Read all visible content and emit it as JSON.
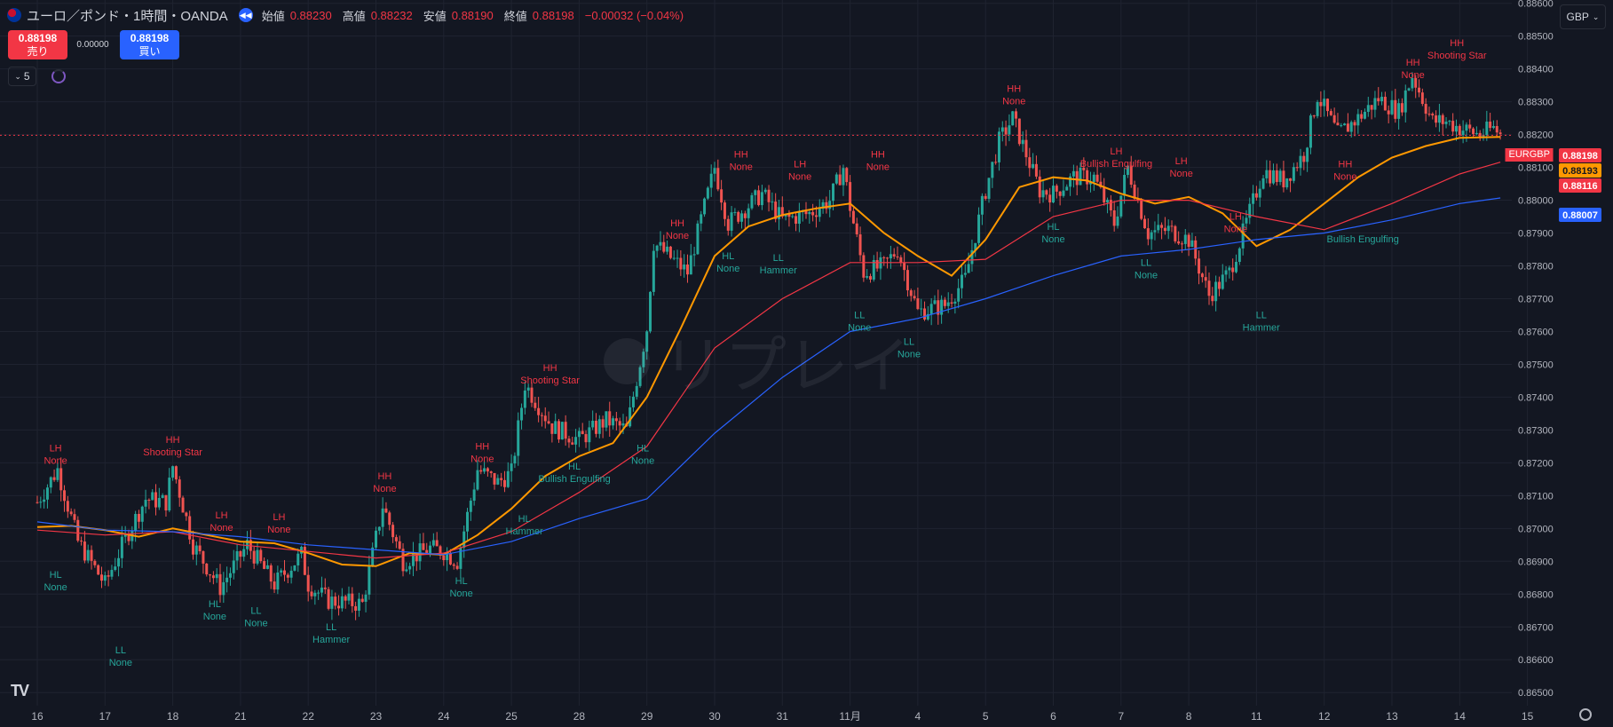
{
  "header": {
    "title": "ユーロ／ポンド・1時間・OANDA",
    "open_label": "始値",
    "open": "0.88230",
    "high_label": "高値",
    "high": "0.88232",
    "low_label": "安値",
    "low": "0.88190",
    "close_label": "終値",
    "close": "0.88198",
    "change": "−0.00032 (−0.04%)"
  },
  "trade": {
    "sell_price": "0.88198",
    "sell_label": "売り",
    "spread": "0.00000",
    "buy_price": "0.88198",
    "buy_label": "買い"
  },
  "interval": "5",
  "currency": "GBP",
  "watermark": "リプレイ",
  "symbol": "EURGBP",
  "colors": {
    "background": "#131722",
    "grid": "#1f2330",
    "up": "#26a69a",
    "down": "#ef5350",
    "ema_fast": "#ff9800",
    "ema_mid": "#f23645",
    "ema_slow": "#2962ff",
    "swing_high_text": "#f23645",
    "swing_low_text": "#26a69a"
  },
  "chart_data": {
    "type": "line",
    "y_axis": {
      "ticks": [
        "0.86500",
        "0.86600",
        "0.86700",
        "0.86800",
        "0.86900",
        "0.87000",
        "0.87100",
        "0.87200",
        "0.87300",
        "0.87400",
        "0.87500",
        "0.87600",
        "0.87700",
        "0.87800",
        "0.87900",
        "0.88000",
        "0.88100",
        "0.88200",
        "0.88300",
        "0.88400",
        "0.88500",
        "0.88600"
      ],
      "range": [
        0.8646,
        0.8861
      ]
    },
    "x_axis": {
      "ticks": [
        "16",
        "17",
        "18",
        "21",
        "22",
        "23",
        "24",
        "25",
        "28",
        "29",
        "30",
        "31",
        "11月",
        "4",
        "5",
        "6",
        "7",
        "8",
        "11",
        "12",
        "13",
        "14",
        "15"
      ]
    },
    "price_series": [
      {
        "x": 0.0,
        "y": 0.8708
      },
      {
        "x": 0.3,
        "y": 0.8718
      },
      {
        "x": 0.6,
        "y": 0.8696
      },
      {
        "x": 1.0,
        "y": 0.8683
      },
      {
        "x": 1.3,
        "y": 0.8697
      },
      {
        "x": 1.6,
        "y": 0.8709
      },
      {
        "x": 1.9,
        "y": 0.8708
      },
      {
        "x": 2.0,
        "y": 0.8719
      },
      {
        "x": 2.3,
        "y": 0.8695
      },
      {
        "x": 2.7,
        "y": 0.8682
      },
      {
        "x": 3.1,
        "y": 0.8695
      },
      {
        "x": 3.5,
        "y": 0.8683
      },
      {
        "x": 3.9,
        "y": 0.8692
      },
      {
        "x": 4.0,
        "y": 0.8683
      },
      {
        "x": 4.3,
        "y": 0.8678
      },
      {
        "x": 4.8,
        "y": 0.8677
      },
      {
        "x": 5.1,
        "y": 0.8707
      },
      {
        "x": 5.4,
        "y": 0.869
      },
      {
        "x": 5.8,
        "y": 0.8694
      },
      {
        "x": 6.0,
        "y": 0.8693
      },
      {
        "x": 6.2,
        "y": 0.869
      },
      {
        "x": 6.5,
        "y": 0.8718
      },
      {
        "x": 6.8,
        "y": 0.8714
      },
      {
        "x": 7.0,
        "y": 0.8717
      },
      {
        "x": 7.2,
        "y": 0.8744
      },
      {
        "x": 7.6,
        "y": 0.8731
      },
      {
        "x": 8.0,
        "y": 0.8727
      },
      {
        "x": 8.4,
        "y": 0.8733
      },
      {
        "x": 8.7,
        "y": 0.873
      },
      {
        "x": 9.0,
        "y": 0.8761
      },
      {
        "x": 9.1,
        "y": 0.8787
      },
      {
        "x": 9.6,
        "y": 0.8778
      },
      {
        "x": 10.0,
        "y": 0.881
      },
      {
        "x": 10.2,
        "y": 0.8793
      },
      {
        "x": 10.7,
        "y": 0.8802
      },
      {
        "x": 11.0,
        "y": 0.8794
      },
      {
        "x": 11.4,
        "y": 0.8796
      },
      {
        "x": 11.7,
        "y": 0.88
      },
      {
        "x": 11.9,
        "y": 0.881
      },
      {
        "x": 12.0,
        "y": 0.8798
      },
      {
        "x": 12.2,
        "y": 0.8778
      },
      {
        "x": 12.5,
        "y": 0.878
      },
      {
        "x": 12.7,
        "y": 0.8785
      },
      {
        "x": 13.0,
        "y": 0.8766
      },
      {
        "x": 13.4,
        "y": 0.8768
      },
      {
        "x": 13.7,
        "y": 0.8776
      },
      {
        "x": 14.0,
        "y": 0.8803
      },
      {
        "x": 14.2,
        "y": 0.8818
      },
      {
        "x": 14.4,
        "y": 0.8825
      },
      {
        "x": 14.6,
        "y": 0.8814
      },
      {
        "x": 14.8,
        "y": 0.8803
      },
      {
        "x": 15.0,
        "y": 0.8802
      },
      {
        "x": 15.3,
        "y": 0.8807
      },
      {
        "x": 15.6,
        "y": 0.8807
      },
      {
        "x": 15.9,
        "y": 0.8793
      },
      {
        "x": 16.1,
        "y": 0.881
      },
      {
        "x": 16.4,
        "y": 0.879
      },
      {
        "x": 16.7,
        "y": 0.8791
      },
      {
        "x": 17.0,
        "y": 0.8788
      },
      {
        "x": 17.3,
        "y": 0.8771
      },
      {
        "x": 17.6,
        "y": 0.8778
      },
      {
        "x": 17.8,
        "y": 0.879
      },
      {
        "x": 18.1,
        "y": 0.8809
      },
      {
        "x": 18.4,
        "y": 0.8806
      },
      {
        "x": 18.7,
        "y": 0.8814
      },
      {
        "x": 18.9,
        "y": 0.8832
      },
      {
        "x": 19.2,
        "y": 0.882
      },
      {
        "x": 19.5,
        "y": 0.8825
      },
      {
        "x": 19.8,
        "y": 0.8831
      },
      {
        "x": 20.1,
        "y": 0.8827
      },
      {
        "x": 20.3,
        "y": 0.8838
      },
      {
        "x": 20.6,
        "y": 0.8824
      },
      {
        "x": 20.8,
        "y": 0.8824
      },
      {
        "x": 21.0,
        "y": 0.8822
      },
      {
        "x": 21.3,
        "y": 0.882
      },
      {
        "x": 21.5,
        "y": 0.8822
      },
      {
        "x": 21.6,
        "y": 0.882
      }
    ],
    "series": [
      {
        "name": "EMA fast",
        "color": "#ff9800",
        "points": [
          {
            "x": 0.0,
            "y": 0.87004
          },
          {
            "x": 0.5,
            "y": 0.87008
          },
          {
            "x": 1.0,
            "y": 0.86995
          },
          {
            "x": 1.5,
            "y": 0.86975
          },
          {
            "x": 2.0,
            "y": 0.87
          },
          {
            "x": 2.5,
            "y": 0.8698
          },
          {
            "x": 3.0,
            "y": 0.8696
          },
          {
            "x": 3.5,
            "y": 0.86955
          },
          {
            "x": 4.0,
            "y": 0.86925
          },
          {
            "x": 4.5,
            "y": 0.8689
          },
          {
            "x": 5.0,
            "y": 0.86885
          },
          {
            "x": 5.5,
            "y": 0.86925
          },
          {
            "x": 6.0,
            "y": 0.8692
          },
          {
            "x": 6.5,
            "y": 0.8698
          },
          {
            "x": 7.0,
            "y": 0.8706
          },
          {
            "x": 7.5,
            "y": 0.8716
          },
          {
            "x": 8.0,
            "y": 0.8722
          },
          {
            "x": 8.5,
            "y": 0.8726
          },
          {
            "x": 9.0,
            "y": 0.874
          },
          {
            "x": 9.5,
            "y": 0.8761
          },
          {
            "x": 10.0,
            "y": 0.8783
          },
          {
            "x": 10.5,
            "y": 0.8792
          },
          {
            "x": 11.0,
            "y": 0.87955
          },
          {
            "x": 11.5,
            "y": 0.87975
          },
          {
            "x": 12.0,
            "y": 0.8799
          },
          {
            "x": 12.5,
            "y": 0.879
          },
          {
            "x": 13.0,
            "y": 0.8783
          },
          {
            "x": 13.5,
            "y": 0.8777
          },
          {
            "x": 14.0,
            "y": 0.8788
          },
          {
            "x": 14.5,
            "y": 0.8804
          },
          {
            "x": 15.0,
            "y": 0.8807
          },
          {
            "x": 15.5,
            "y": 0.8806
          },
          {
            "x": 16.0,
            "y": 0.8802
          },
          {
            "x": 16.5,
            "y": 0.8799
          },
          {
            "x": 17.0,
            "y": 0.8801
          },
          {
            "x": 17.5,
            "y": 0.8796
          },
          {
            "x": 18.0,
            "y": 0.8786
          },
          {
            "x": 18.5,
            "y": 0.8791
          },
          {
            "x": 19.0,
            "y": 0.8799
          },
          {
            "x": 19.5,
            "y": 0.8807
          },
          {
            "x": 20.0,
            "y": 0.8813
          },
          {
            "x": 20.5,
            "y": 0.88165
          },
          {
            "x": 21.0,
            "y": 0.8819
          },
          {
            "x": 21.6,
            "y": 0.88193
          }
        ]
      },
      {
        "name": "EMA mid",
        "color": "#f23645",
        "points": [
          {
            "x": 0.0,
            "y": 0.86995
          },
          {
            "x": 1.0,
            "y": 0.8698
          },
          {
            "x": 2.0,
            "y": 0.8699
          },
          {
            "x": 3.0,
            "y": 0.8695
          },
          {
            "x": 4.0,
            "y": 0.8693
          },
          {
            "x": 5.0,
            "y": 0.8691
          },
          {
            "x": 6.0,
            "y": 0.86925
          },
          {
            "x": 7.0,
            "y": 0.8699
          },
          {
            "x": 8.0,
            "y": 0.8711
          },
          {
            "x": 9.0,
            "y": 0.8725
          },
          {
            "x": 10.0,
            "y": 0.8755
          },
          {
            "x": 11.0,
            "y": 0.877
          },
          {
            "x": 12.0,
            "y": 0.8781
          },
          {
            "x": 13.0,
            "y": 0.8781
          },
          {
            "x": 14.0,
            "y": 0.8782
          },
          {
            "x": 15.0,
            "y": 0.8795
          },
          {
            "x": 16.0,
            "y": 0.88
          },
          {
            "x": 17.0,
            "y": 0.88
          },
          {
            "x": 18.0,
            "y": 0.8795
          },
          {
            "x": 19.0,
            "y": 0.8791
          },
          {
            "x": 20.0,
            "y": 0.8799
          },
          {
            "x": 21.0,
            "y": 0.8808
          },
          {
            "x": 21.6,
            "y": 0.88116
          }
        ]
      },
      {
        "name": "EMA slow",
        "color": "#2962ff",
        "points": [
          {
            "x": 0.0,
            "y": 0.8702
          },
          {
            "x": 1.0,
            "y": 0.86995
          },
          {
            "x": 2.0,
            "y": 0.8699
          },
          {
            "x": 3.0,
            "y": 0.86975
          },
          {
            "x": 4.0,
            "y": 0.8695
          },
          {
            "x": 5.0,
            "y": 0.86935
          },
          {
            "x": 6.0,
            "y": 0.8692
          },
          {
            "x": 7.0,
            "y": 0.8696
          },
          {
            "x": 8.0,
            "y": 0.8703
          },
          {
            "x": 9.0,
            "y": 0.8709
          },
          {
            "x": 10.0,
            "y": 0.8729
          },
          {
            "x": 11.0,
            "y": 0.8746
          },
          {
            "x": 12.0,
            "y": 0.876
          },
          {
            "x": 13.0,
            "y": 0.8764
          },
          {
            "x": 14.0,
            "y": 0.877
          },
          {
            "x": 15.0,
            "y": 0.8777
          },
          {
            "x": 16.0,
            "y": 0.8783
          },
          {
            "x": 17.0,
            "y": 0.8785
          },
          {
            "x": 18.0,
            "y": 0.8788
          },
          {
            "x": 19.0,
            "y": 0.879
          },
          {
            "x": 20.0,
            "y": 0.8794
          },
          {
            "x": 21.0,
            "y": 0.8799
          },
          {
            "x": 21.6,
            "y": 0.88007
          }
        ]
      }
    ],
    "current_price": 0.88198,
    "price_labels": [
      {
        "value": 0.88198,
        "text": "0.88198",
        "color": "#f23645"
      },
      {
        "value": 0.88193,
        "text": "0.88193",
        "color": "#ff9800"
      },
      {
        "value": 0.88116,
        "text": "0.88116",
        "color": "#f23645"
      },
      {
        "value": 0.88007,
        "text": "0.88007",
        "color": "#2962ff"
      }
    ],
    "annotations": [
      {
        "kind": "high",
        "x": 0.27,
        "y": 0.87235,
        "line1": "LH",
        "line2": "None"
      },
      {
        "kind": "high",
        "x": 2.0,
        "y": 0.8726,
        "line1": "HH",
        "line2": "Shooting Star"
      },
      {
        "kind": "high",
        "x": 2.72,
        "y": 0.8703,
        "line1": "LH",
        "line2": "None"
      },
      {
        "kind": "high",
        "x": 3.57,
        "y": 0.87025,
        "line1": "LH",
        "line2": "None"
      },
      {
        "kind": "high",
        "x": 5.13,
        "y": 0.8715,
        "line1": "HH",
        "line2": "None"
      },
      {
        "kind": "high",
        "x": 6.57,
        "y": 0.8724,
        "line1": "HH",
        "line2": "None"
      },
      {
        "kind": "high",
        "x": 7.57,
        "y": 0.8748,
        "line1": "HH",
        "line2": "Shooting Star"
      },
      {
        "kind": "high",
        "x": 9.45,
        "y": 0.8792,
        "line1": "HH",
        "line2": "None"
      },
      {
        "kind": "high",
        "x": 10.39,
        "y": 0.8813,
        "line1": "HH",
        "line2": "None"
      },
      {
        "kind": "high",
        "x": 11.26,
        "y": 0.881,
        "line1": "LH",
        "line2": "None"
      },
      {
        "kind": "high",
        "x": 12.41,
        "y": 0.8813,
        "line1": "HH",
        "line2": "None"
      },
      {
        "kind": "high",
        "x": 14.42,
        "y": 0.8833,
        "line1": "HH",
        "line2": "None"
      },
      {
        "kind": "high",
        "x": 15.93,
        "y": 0.8814,
        "line1": "LH",
        "line2": "Bullish Engulfing"
      },
      {
        "kind": "high",
        "x": 16.89,
        "y": 0.8811,
        "line1": "LH",
        "line2": "None"
      },
      {
        "kind": "high",
        "x": 17.69,
        "y": 0.8794,
        "line1": "LH",
        "line2": "None"
      },
      {
        "kind": "high",
        "x": 19.31,
        "y": 0.881,
        "line1": "HH",
        "line2": "None"
      },
      {
        "kind": "high",
        "x": 20.31,
        "y": 0.8841,
        "line1": "HH",
        "line2": "None"
      },
      {
        "kind": "high",
        "x": 20.96,
        "y": 0.8847,
        "line1": "HH",
        "line2": "Shooting Star"
      },
      {
        "kind": "low",
        "x": 0.27,
        "y": 0.8685,
        "line1": "HL",
        "line2": "None"
      },
      {
        "kind": "low",
        "x": 1.23,
        "y": 0.8662,
        "line1": "LL",
        "line2": "None"
      },
      {
        "kind": "low",
        "x": 2.62,
        "y": 0.8676,
        "line1": "HL",
        "line2": "None"
      },
      {
        "kind": "low",
        "x": 3.23,
        "y": 0.8674,
        "line1": "LL",
        "line2": "None"
      },
      {
        "kind": "low",
        "x": 4.34,
        "y": 0.8669,
        "line1": "LL",
        "line2": "Hammer"
      },
      {
        "kind": "low",
        "x": 6.26,
        "y": 0.8683,
        "line1": "HL",
        "line2": "None"
      },
      {
        "kind": "low",
        "x": 7.19,
        "y": 0.8702,
        "line1": "HL",
        "line2": "Hammer"
      },
      {
        "kind": "low",
        "x": 7.93,
        "y": 0.8718,
        "line1": "HL",
        "line2": "Bullish Engulfing"
      },
      {
        "kind": "low",
        "x": 8.94,
        "y": 0.87235,
        "line1": "HL",
        "line2": "None"
      },
      {
        "kind": "low",
        "x": 10.2,
        "y": 0.8782,
        "line1": "HL",
        "line2": "None"
      },
      {
        "kind": "low",
        "x": 10.94,
        "y": 0.87815,
        "line1": "LL",
        "line2": "Hammer"
      },
      {
        "kind": "low",
        "x": 12.14,
        "y": 0.8764,
        "line1": "LL",
        "line2": "None"
      },
      {
        "kind": "low",
        "x": 12.87,
        "y": 0.8756,
        "line1": "LL",
        "line2": "None"
      },
      {
        "kind": "low",
        "x": 15.0,
        "y": 0.8791,
        "line1": "HL",
        "line2": "None"
      },
      {
        "kind": "low",
        "x": 16.37,
        "y": 0.878,
        "line1": "LL",
        "line2": "None"
      },
      {
        "kind": "low",
        "x": 18.07,
        "y": 0.8764,
        "line1": "LL",
        "line2": "Hammer"
      },
      {
        "kind": "low",
        "x": 19.57,
        "y": 0.8791,
        "line1": "",
        "line2": "Bullish Engulfing"
      }
    ]
  }
}
